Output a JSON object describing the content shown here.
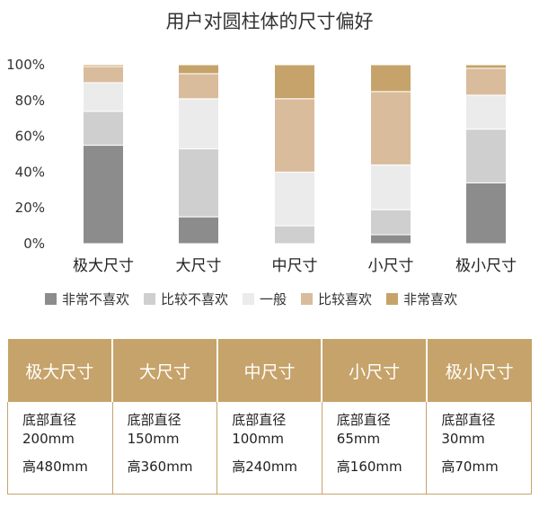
{
  "chart_data": {
    "type": "bar",
    "stacked": true,
    "title": "用户对圆柱体的尺寸偏好",
    "categories": [
      "极大尺寸",
      "大尺寸",
      "中尺寸",
      "小尺寸",
      "极小尺寸"
    ],
    "yticks": [
      "0%",
      "20%",
      "40%",
      "60%",
      "80%",
      "100%"
    ],
    "ylim": [
      0,
      100
    ],
    "grid": false,
    "legend_position": "bottom",
    "series": [
      {
        "name": "非常不喜欢",
        "color": "#8c8c8c",
        "values": [
          55,
          15,
          0,
          5,
          34
        ]
      },
      {
        "name": "比较不喜欢",
        "color": "#cfcfcf",
        "values": [
          19,
          38,
          10,
          14,
          30
        ]
      },
      {
        "name": "一般",
        "color": "#ebebeb",
        "values": [
          16,
          28,
          30,
          25,
          19
        ]
      },
      {
        "name": "比较喜欢",
        "color": "#d9bc9c",
        "values": [
          9,
          14,
          41,
          41,
          15
        ]
      },
      {
        "name": "非常喜欢",
        "color": "#c6a36a",
        "values": [
          1,
          5,
          19,
          15,
          2
        ]
      }
    ]
  },
  "spec_table": {
    "headers": [
      "极大尺寸",
      "大尺寸",
      "中尺寸",
      "小尺寸",
      "极小尺寸"
    ],
    "rows": [
      {
        "line1": "底部直径",
        "line2": "200mm",
        "line3": "高480mm"
      },
      {
        "line1": "底部直径",
        "line2": "150mm",
        "line3": "高360mm"
      },
      {
        "line1": "底部直径",
        "line2": "100mm",
        "line3": "高240mm"
      },
      {
        "line1": "底部直径",
        "line2": "65mm",
        "line3": "高160mm"
      },
      {
        "line1": "底部直径",
        "line2": "30mm",
        "line3": "高70mm"
      }
    ]
  }
}
